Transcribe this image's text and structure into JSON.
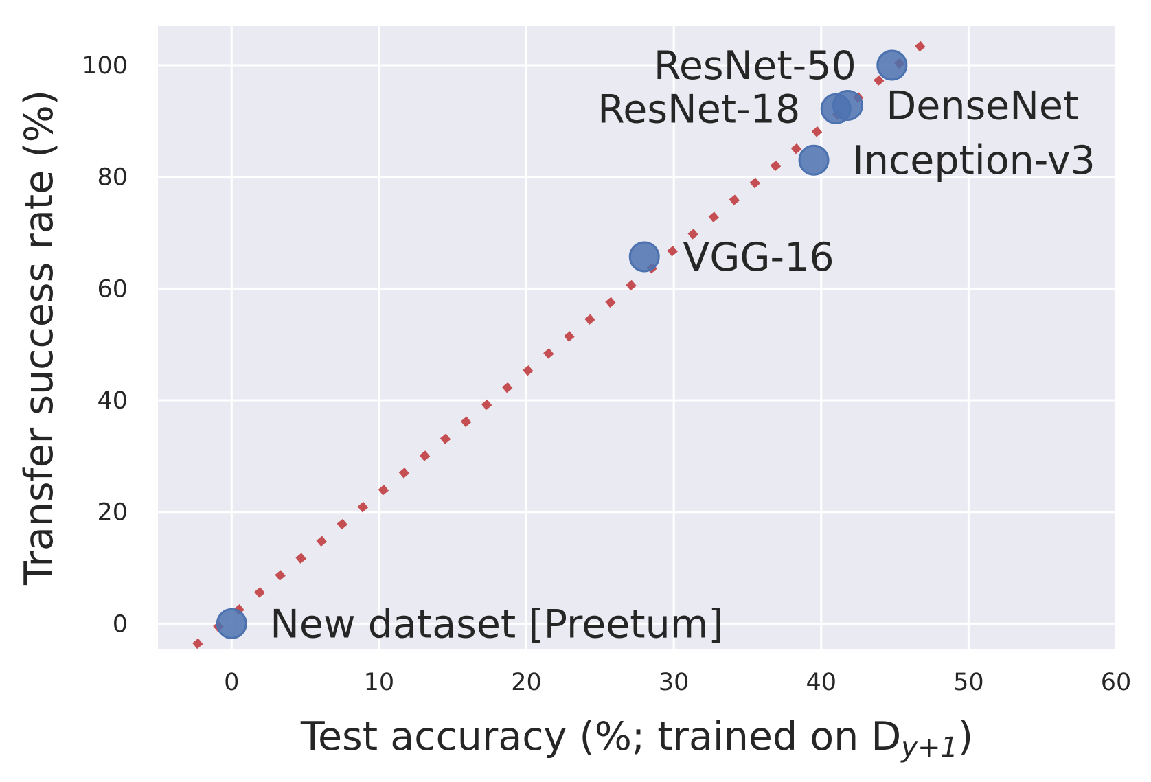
{
  "chart_data": {
    "type": "scatter",
    "title": "",
    "xlabel": "Test accuracy (%; trained on D",
    "xlabel_sub": "y+1",
    "xlabel_suffix": ")",
    "ylabel": "Transfer success rate (%)",
    "xlim": [
      -5,
      60
    ],
    "ylim": [
      -4.5,
      107
    ],
    "xticks": [
      0,
      10,
      20,
      30,
      40,
      50,
      60
    ],
    "yticks": [
      0,
      20,
      40,
      60,
      80,
      100
    ],
    "grid": true,
    "legend": "none",
    "points": [
      {
        "label": "New dataset [Preetum]",
        "x": 0,
        "y": 0,
        "label_side": "right"
      },
      {
        "label": "VGG-16",
        "x": 28,
        "y": 65.7,
        "label_side": "right"
      },
      {
        "label": "Inception-v3",
        "x": 39.5,
        "y": 83,
        "label_side": "right"
      },
      {
        "label": "ResNet-18",
        "x": 41,
        "y": 92.2,
        "label_side": "left"
      },
      {
        "label": "DenseNet",
        "x": 41.8,
        "y": 92.8,
        "label_side": "right"
      },
      {
        "label": "ResNet-50",
        "x": 44.8,
        "y": 100,
        "label_side": "left"
      }
    ],
    "trendline": {
      "style": "dotted",
      "x": [
        -2.5,
        47
      ],
      "y": [
        -4,
        104
      ]
    },
    "colors": {
      "points": "#4c72b0",
      "trendline": "#c44e52",
      "plot_background": "#eaeaf2",
      "grid": "#ffffff",
      "text": "#262626"
    }
  }
}
